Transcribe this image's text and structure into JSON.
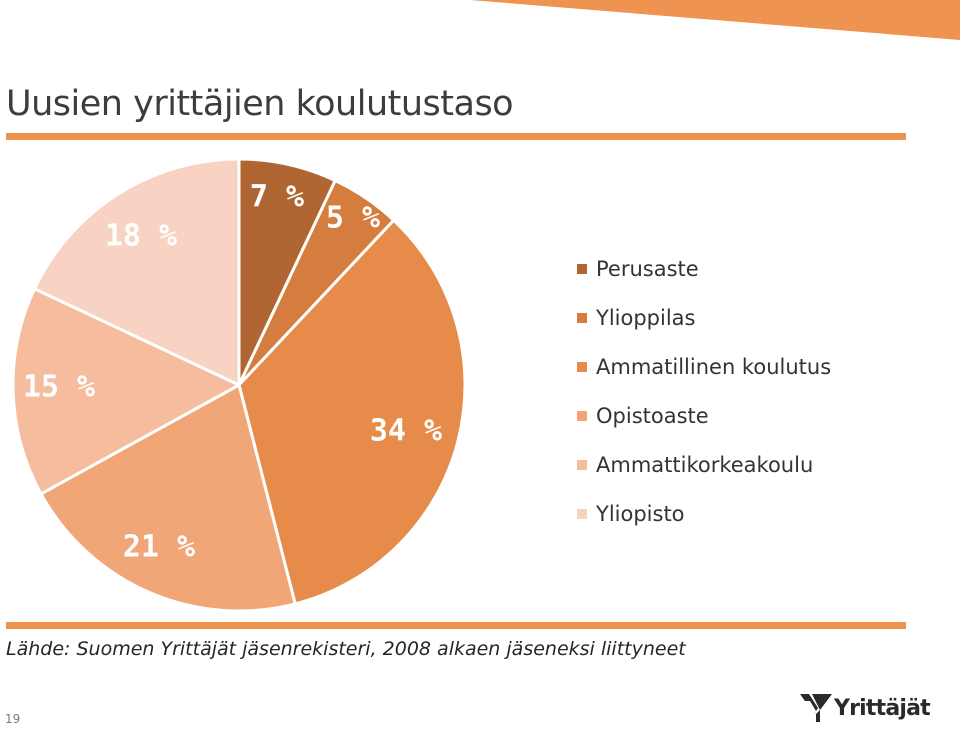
{
  "title": "Uusien yrittäjien koulutustaso",
  "source_note": "Lähde: Suomen Yrittäjät jäsenrekisteri, 2008 alkaen jäseneksi liittyneet",
  "page_number": "19",
  "logo_text": "Yrittäjät",
  "colors": {
    "accent": "#ef9450",
    "rule": "#ef9450"
  },
  "chart_data": {
    "type": "pie",
    "categories": [
      "Perusaste",
      "Ylioppilas",
      "Ammatillinen koulutus",
      "Opistoaste",
      "Ammattikorkeakoulu",
      "Yliopisto"
    ],
    "values": [
      7,
      5,
      34,
      21,
      15,
      18
    ],
    "value_labels": [
      "7 %",
      "5 %",
      "34 %",
      "21 %",
      "15 %",
      "18 %"
    ],
    "colors": [
      "#b06633",
      "#d57d3f",
      "#e68b49",
      "#f0a676",
      "#f5bc9e",
      "#f8d2c2"
    ],
    "start_angle": "12 o'clock",
    "direction": "clockwise",
    "legend_position": "right"
  }
}
